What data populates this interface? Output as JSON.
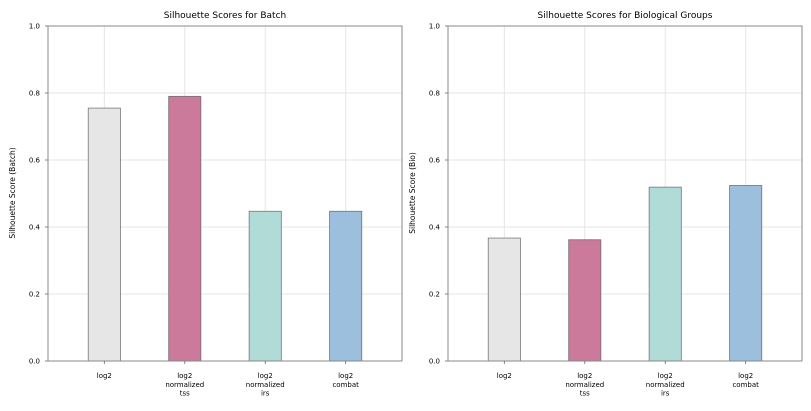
{
  "chart_data": [
    {
      "type": "bar",
      "title": "Silhouette Scores for Batch",
      "xlabel": "",
      "ylabel": "Silhouette Score (Batch)",
      "ylim": [
        0,
        1.0
      ],
      "yticks": [
        "0.0",
        "0.2",
        "0.4",
        "0.6",
        "0.8",
        "1.0"
      ],
      "grid": true,
      "categories": [
        [
          "log2"
        ],
        [
          "log2",
          "normalized",
          "tss"
        ],
        [
          "log2",
          "normalized",
          "irs"
        ],
        [
          "log2",
          "combat"
        ]
      ],
      "values": [
        0.755,
        0.79,
        0.447,
        0.447
      ],
      "colors": [
        "#e6e6e6",
        "#cc7a9b",
        "#b0dbd6",
        "#9bbfdc"
      ]
    },
    {
      "type": "bar",
      "title": "Silhouette Scores for Biological Groups",
      "xlabel": "",
      "ylabel": "Silhouette Score (Bio)",
      "ylim": [
        0,
        1.0
      ],
      "yticks": [
        "0.0",
        "0.2",
        "0.4",
        "0.6",
        "0.8",
        "1.0"
      ],
      "grid": true,
      "categories": [
        [
          "log2"
        ],
        [
          "log2",
          "normalized",
          "tss"
        ],
        [
          "log2",
          "normalized",
          "irs"
        ],
        [
          "log2",
          "combat"
        ]
      ],
      "values": [
        0.367,
        0.362,
        0.519,
        0.524
      ],
      "colors": [
        "#e6e6e6",
        "#cc7a9b",
        "#b0dbd6",
        "#9bbfdc"
      ]
    }
  ]
}
